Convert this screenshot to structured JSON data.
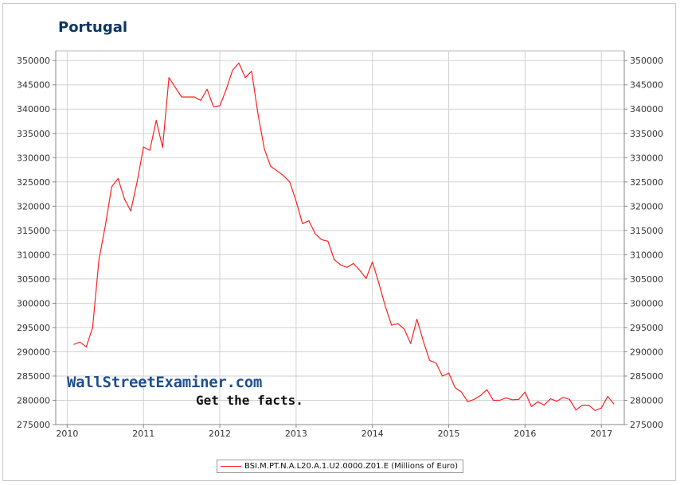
{
  "chart_data": {
    "type": "line",
    "title": "Portugal",
    "xlabel": "",
    "ylabel": "",
    "xlim": [
      2009.85,
      2017.3
    ],
    "ylim": [
      275000,
      352000
    ],
    "x_ticks": [
      "2010",
      "2011",
      "2012",
      "2013",
      "2014",
      "2015",
      "2016",
      "2017"
    ],
    "y_ticks": [
      275000,
      280000,
      285000,
      290000,
      295000,
      300000,
      305000,
      310000,
      315000,
      320000,
      325000,
      330000,
      335000,
      340000,
      345000,
      350000
    ],
    "grid": true,
    "legend_position": "bottom-center",
    "series": [
      {
        "name": "BSI.M.PT.N.A.L20.A.1.U2.0000.Z01.E (Millions of Euro)",
        "color": "#ff2020",
        "points": [
          [
            "2010-02",
            291500
          ],
          [
            "2010-03",
            292000
          ],
          [
            "2010-04",
            291000
          ],
          [
            "2010-05",
            295000
          ],
          [
            "2010-06",
            309000
          ],
          [
            "2010-07",
            316000
          ],
          [
            "2010-08",
            324000
          ],
          [
            "2010-09",
            325700
          ],
          [
            "2010-10",
            321500
          ],
          [
            "2010-11",
            319000
          ],
          [
            "2010-12",
            325000
          ],
          [
            "2011-01",
            332200
          ],
          [
            "2011-02",
            331500
          ],
          [
            "2011-03",
            337700
          ],
          [
            "2011-04",
            332100
          ],
          [
            "2011-05",
            346500
          ],
          [
            "2011-06",
            344500
          ],
          [
            "2011-07",
            342500
          ],
          [
            "2011-08",
            342500
          ],
          [
            "2011-09",
            342500
          ],
          [
            "2011-10",
            341800
          ],
          [
            "2011-11",
            344100
          ],
          [
            "2011-12",
            340500
          ],
          [
            "2012-01",
            340700
          ],
          [
            "2012-02",
            344000
          ],
          [
            "2012-03",
            348000
          ],
          [
            "2012-04",
            349500
          ],
          [
            "2012-05",
            346500
          ],
          [
            "2012-06",
            347800
          ],
          [
            "2012-07",
            339000
          ],
          [
            "2012-08",
            331800
          ],
          [
            "2012-09",
            328200
          ],
          [
            "2012-10",
            327300
          ],
          [
            "2012-11",
            326300
          ],
          [
            "2012-12",
            325000
          ],
          [
            "2013-01",
            321000
          ],
          [
            "2013-02",
            316400
          ],
          [
            "2013-03",
            317000
          ],
          [
            "2013-04",
            314300
          ],
          [
            "2013-05",
            313100
          ],
          [
            "2013-06",
            312800
          ],
          [
            "2013-07",
            309000
          ],
          [
            "2013-08",
            307900
          ],
          [
            "2013-09",
            307400
          ],
          [
            "2013-10",
            308200
          ],
          [
            "2013-11",
            306800
          ],
          [
            "2013-12",
            305100
          ],
          [
            "2014-01",
            308500
          ],
          [
            "2014-02",
            304200
          ],
          [
            "2014-03",
            299500
          ],
          [
            "2014-04",
            295500
          ],
          [
            "2014-05",
            295800
          ],
          [
            "2014-06",
            294700
          ],
          [
            "2014-07",
            291700
          ],
          [
            "2014-08",
            296700
          ],
          [
            "2014-09",
            292200
          ],
          [
            "2014-10",
            288200
          ],
          [
            "2014-11",
            287700
          ],
          [
            "2014-12",
            285000
          ],
          [
            "2015-01",
            285600
          ],
          [
            "2015-02",
            282600
          ],
          [
            "2015-03",
            281700
          ],
          [
            "2015-04",
            279700
          ],
          [
            "2015-05",
            280200
          ],
          [
            "2015-06",
            281000
          ],
          [
            "2015-07",
            282200
          ],
          [
            "2015-08",
            280000
          ],
          [
            "2015-09",
            280000
          ],
          [
            "2015-10",
            280500
          ],
          [
            "2015-11",
            280100
          ],
          [
            "2015-12",
            280200
          ],
          [
            "2016-01",
            281700
          ],
          [
            "2016-02",
            278700
          ],
          [
            "2016-03",
            279700
          ],
          [
            "2016-04",
            279000
          ],
          [
            "2016-05",
            280300
          ],
          [
            "2016-06",
            279800
          ],
          [
            "2016-07",
            280600
          ],
          [
            "2016-08",
            280200
          ],
          [
            "2016-09",
            278000
          ],
          [
            "2016-10",
            279000
          ],
          [
            "2016-11",
            279000
          ],
          [
            "2016-12",
            277900
          ],
          [
            "2017-01",
            278400
          ],
          [
            "2017-02",
            280800
          ],
          [
            "2017-03",
            279200
          ]
        ]
      }
    ]
  },
  "watermark": {
    "line1": "WallStreetExaminer.com",
    "line2": "Get the facts."
  },
  "colors": {
    "title": "#0c3761",
    "series": "#ff2020",
    "grid": "#d2d2d2",
    "axis": "#888888"
  }
}
